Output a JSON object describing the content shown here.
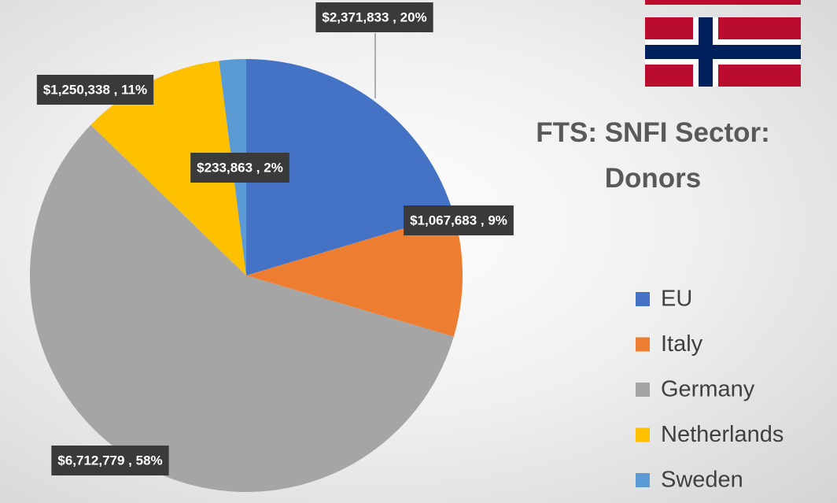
{
  "chart_data": {
    "type": "pie",
    "title": "FTS: SNFI Sector: Donors",
    "categories": [
      "EU",
      "Italy",
      "Germany",
      "Netherlands",
      "Sweden"
    ],
    "values": [
      2371833,
      1067683,
      6712779,
      1250338,
      233863
    ],
    "value_labels": [
      "$2,371,833 , 20%",
      "$1,067,683 , 9%",
      "$6,712,779 , 58%",
      "$1,250,338 , 11%",
      "$233,863 , 2%"
    ],
    "colors": [
      "#4472c4",
      "#ed7d31",
      "#a5a5a5",
      "#ffc000",
      "#5b9bd5"
    ],
    "legend": "right"
  }
}
